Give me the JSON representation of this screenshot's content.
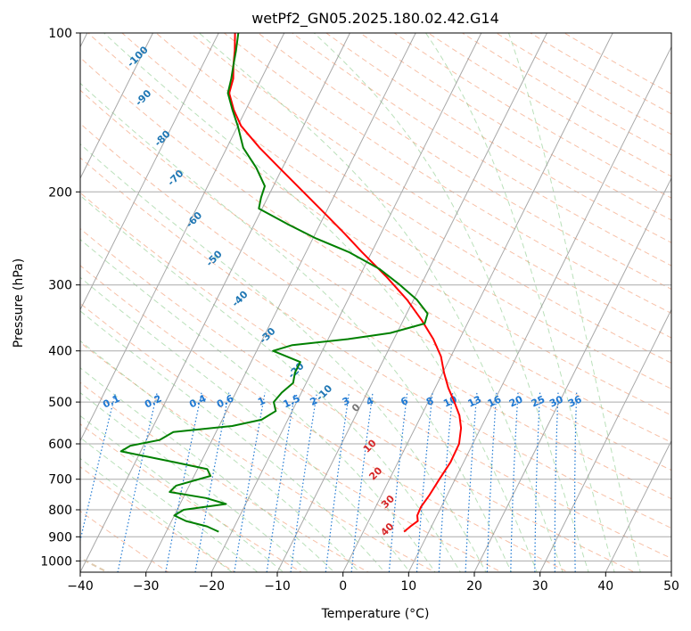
{
  "chart_data": {
    "type": "line",
    "subtype": "skew-T log-P diagram",
    "title": "wetPf2_GN05.2025.180.02.42.G14",
    "xlabel": "Temperature (°C)",
    "ylabel": "Pressure (hPa)",
    "xlim": [
      -40,
      50
    ],
    "ylim": [
      1050,
      100
    ],
    "yscale": "log",
    "x_ticks": [
      -40,
      -30,
      -20,
      -10,
      0,
      10,
      20,
      30,
      40,
      50
    ],
    "y_ticks": [
      100,
      200,
      300,
      400,
      500,
      600,
      700,
      800,
      900,
      1000
    ],
    "grid": true,
    "legend": "none",
    "series": [
      {
        "role": "temperature",
        "color": "#ff0000",
        "points": [
          {
            "p": 880,
            "t": 6.2
          },
          {
            "p": 860,
            "t": 6.8
          },
          {
            "p": 840,
            "t": 7.5
          },
          {
            "p": 820,
            "t": 7.0
          },
          {
            "p": 790,
            "t": 6.9
          },
          {
            "p": 750,
            "t": 7.3
          },
          {
            "p": 700,
            "t": 7.6
          },
          {
            "p": 650,
            "t": 8.0
          },
          {
            "p": 600,
            "t": 7.9
          },
          {
            "p": 560,
            "t": 7.0
          },
          {
            "p": 530,
            "t": 5.8
          },
          {
            "p": 500,
            "t": 4.0
          },
          {
            "p": 470,
            "t": 2.0
          },
          {
            "p": 440,
            "t": 0.2
          },
          {
            "p": 410,
            "t": -1.5
          },
          {
            "p": 380,
            "t": -4.0
          },
          {
            "p": 350,
            "t": -7.2
          },
          {
            "p": 320,
            "t": -11.0
          },
          {
            "p": 290,
            "t": -15.8
          },
          {
            "p": 260,
            "t": -21.5
          },
          {
            "p": 240,
            "t": -25.5
          },
          {
            "p": 220,
            "t": -30.0
          },
          {
            "p": 200,
            "t": -35.0
          },
          {
            "p": 180,
            "t": -40.5
          },
          {
            "p": 165,
            "t": -45.0
          },
          {
            "p": 150,
            "t": -49.5
          },
          {
            "p": 140,
            "t": -51.8
          },
          {
            "p": 130,
            "t": -53.8
          },
          {
            "p": 122,
            "t": -54.3
          },
          {
            "p": 115,
            "t": -55.3
          },
          {
            "p": 108,
            "t": -56.2
          },
          {
            "p": 100,
            "t": -57.5
          }
        ]
      },
      {
        "role": "dewpoint",
        "color": "#008000",
        "points": [
          {
            "p": 880,
            "t": -22.0
          },
          {
            "p": 860,
            "t": -24.2
          },
          {
            "p": 840,
            "t": -27.8
          },
          {
            "p": 820,
            "t": -30.0
          },
          {
            "p": 800,
            "t": -29.0
          },
          {
            "p": 780,
            "t": -23.0
          },
          {
            "p": 760,
            "t": -26.5
          },
          {
            "p": 740,
            "t": -32.5
          },
          {
            "p": 720,
            "t": -32.0
          },
          {
            "p": 690,
            "t": -27.5
          },
          {
            "p": 670,
            "t": -28.5
          },
          {
            "p": 650,
            "t": -34.0
          },
          {
            "p": 620,
            "t": -43.0
          },
          {
            "p": 605,
            "t": -42.0
          },
          {
            "p": 590,
            "t": -38.0
          },
          {
            "p": 570,
            "t": -36.5
          },
          {
            "p": 555,
            "t": -28.0
          },
          {
            "p": 540,
            "t": -24.0
          },
          {
            "p": 520,
            "t": -22.5
          },
          {
            "p": 500,
            "t": -23.5
          },
          {
            "p": 480,
            "t": -23.0
          },
          {
            "p": 460,
            "t": -22.0
          },
          {
            "p": 440,
            "t": -22.5
          },
          {
            "p": 420,
            "t": -22.5
          },
          {
            "p": 400,
            "t": -27.5
          },
          {
            "p": 390,
            "t": -25.0
          },
          {
            "p": 380,
            "t": -17.0
          },
          {
            "p": 370,
            "t": -11.0
          },
          {
            "p": 355,
            "t": -6.5
          },
          {
            "p": 340,
            "t": -6.8
          },
          {
            "p": 320,
            "t": -9.5
          },
          {
            "p": 300,
            "t": -13.2
          },
          {
            "p": 280,
            "t": -17.5
          },
          {
            "p": 260,
            "t": -23.5
          },
          {
            "p": 245,
            "t": -29.5
          },
          {
            "p": 230,
            "t": -35.0
          },
          {
            "p": 215,
            "t": -40.5
          },
          {
            "p": 205,
            "t": -41.0
          },
          {
            "p": 195,
            "t": -41.3
          },
          {
            "p": 180,
            "t": -44.0
          },
          {
            "p": 165,
            "t": -47.5
          },
          {
            "p": 150,
            "t": -50.0
          },
          {
            "p": 140,
            "t": -52.0
          },
          {
            "p": 130,
            "t": -54.0
          },
          {
            "p": 122,
            "t": -54.6
          },
          {
            "p": 115,
            "t": -55.3
          },
          {
            "p": 108,
            "t": -56.0
          },
          {
            "p": 100,
            "t": -57.0
          }
        ]
      }
    ],
    "background_lines": {
      "isotherms_every_c": 10,
      "isotherm_color": "#999999",
      "dry_adiabat_color": "#f4a582",
      "moist_adiabat_color": "#66bb66",
      "mixing_ratio_color": "#1e78d2",
      "lcl_line_color": "#d2b48c",
      "isotherm_labels": [
        {
          "value": "-100",
          "p": 112,
          "t": -70
        },
        {
          "value": "-90",
          "p": 134,
          "t": -66
        },
        {
          "value": "-80",
          "p": 160,
          "t": -60
        },
        {
          "value": "-70",
          "p": 190,
          "t": -55
        },
        {
          "value": "-60",
          "p": 228,
          "t": -49
        },
        {
          "value": "-50",
          "p": 270,
          "t": -43
        },
        {
          "value": "-40",
          "p": 322,
          "t": -36
        },
        {
          "value": "-30",
          "p": 378,
          "t": -29
        },
        {
          "value": "-20",
          "p": 440,
          "t": -22
        },
        {
          "value": "-10",
          "p": 485,
          "t": -16
        },
        {
          "value": "0",
          "p": 518,
          "t": -10
        },
        {
          "value": "10",
          "p": 612,
          "t": -5
        },
        {
          "value": "20",
          "p": 690,
          "t": -2
        },
        {
          "value": "30",
          "p": 780,
          "t": 2
        },
        {
          "value": "40",
          "p": 880,
          "t": 4
        }
      ],
      "mixing_ratio_labels": [
        "0.1",
        "0.2",
        "0.4",
        "0.6",
        "1",
        "1.5",
        "2",
        "3",
        "4",
        "6",
        "8",
        "10",
        "13",
        "16",
        "20",
        "25",
        "30",
        "36"
      ]
    }
  }
}
